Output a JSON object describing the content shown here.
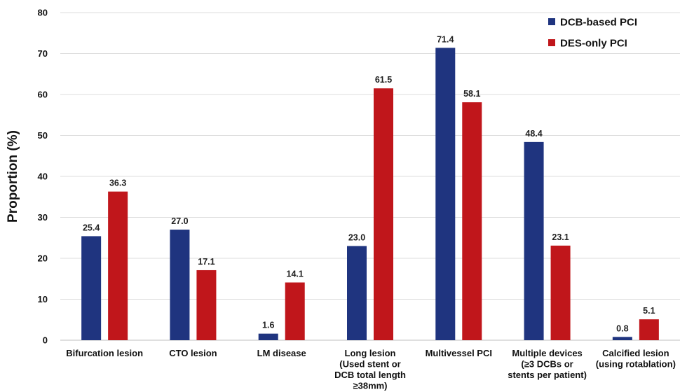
{
  "chart_data": {
    "type": "bar",
    "title": "",
    "xlabel": "",
    "ylabel": "Proportion (%)",
    "ylim": [
      0,
      80
    ],
    "yticks": [
      0,
      10,
      20,
      30,
      40,
      50,
      60,
      70,
      80
    ],
    "grid": true,
    "legend_position": "top-right",
    "categories": [
      [
        "Bifurcation lesion"
      ],
      [
        "CTO lesion"
      ],
      [
        "LM disease"
      ],
      [
        "Long lesion",
        "(Used stent or",
        "DCB total length",
        "≥38mm)"
      ],
      [
        "Multivessel PCI"
      ],
      [
        "Multiple devices",
        "(≥3 DCBs or",
        "stents per patient)"
      ],
      [
        "Calcified lesion",
        "(using rotablation)"
      ]
    ],
    "series": [
      {
        "name": "DCB-based PCI",
        "color": "#1f347f",
        "values": [
          25.4,
          27.0,
          1.6,
          23.0,
          71.4,
          48.4,
          0.8
        ],
        "labels": [
          "25.4",
          "27.0",
          "1.6",
          "23.0",
          "71.4",
          "48.4",
          "0.8"
        ]
      },
      {
        "name": "DES-only PCI",
        "color": "#c0161b",
        "values": [
          36.3,
          17.1,
          14.1,
          61.5,
          58.1,
          23.1,
          5.1
        ],
        "labels": [
          "36.3",
          "17.1",
          "14.1",
          "61.5",
          "58.1",
          "23.1",
          "5.1"
        ]
      }
    ]
  }
}
